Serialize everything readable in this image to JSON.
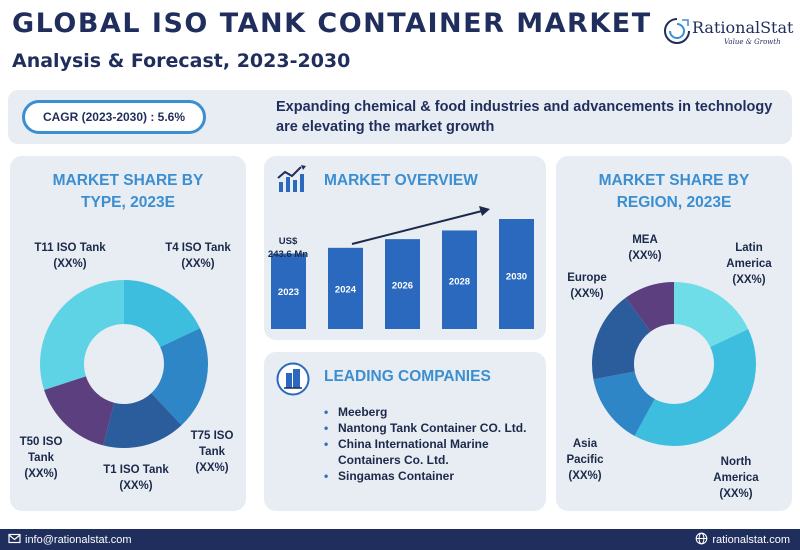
{
  "header": {
    "title": "GLOBAL ISO TANK CONTAINER MARKET",
    "subtitle": "Analysis & Forecast, 2023-2030"
  },
  "logo": {
    "name": "RationalStat",
    "tagline": "Value & Growth"
  },
  "banner": {
    "cagr": "CAGR (2023-2030) : 5.6%",
    "text": "Expanding chemical & food industries and advancements in technology are elevating the market growth"
  },
  "type_share": {
    "heading": "MARKET SHARE BY TYPE, 2023E",
    "labels": {
      "t11": [
        "T11 ISO Tank",
        "(XX%)"
      ],
      "t4": [
        "T4 ISO Tank",
        "(XX%)"
      ],
      "t75": [
        "T75 ISO",
        "Tank",
        "(XX%)"
      ],
      "t1": [
        "T1 ISO Tank",
        "(XX%)"
      ],
      "t50": [
        "T50 ISO",
        "Tank",
        "(XX%)"
      ]
    }
  },
  "overview": {
    "heading": "MARKET OVERVIEW",
    "value_label": [
      "US$",
      "243.6 Mn"
    ]
  },
  "companies": {
    "heading": "LEADING COMPANIES",
    "items": [
      "Meeberg",
      "Nantong Tank Container CO. Ltd.",
      "China International Marine Containers Co. Ltd.",
      "Singamas Container"
    ]
  },
  "region_share": {
    "heading": "MARKET SHARE BY REGION, 2023E",
    "labels": {
      "mea": [
        "MEA",
        "(XX%)"
      ],
      "latam": [
        "Latin",
        "America",
        "(XX%)"
      ],
      "europe": [
        "Europe",
        "(XX%)"
      ],
      "apac": [
        "Asia",
        "Pacific",
        "(XX%)"
      ],
      "na": [
        "North",
        "America",
        "(XX%)"
      ]
    }
  },
  "footer": {
    "email": "info@rationalstat.com",
    "website": "rationalstat.com"
  },
  "chart_data": [
    {
      "type": "pie",
      "title": "MARKET SHARE BY TYPE, 2023E",
      "categories": [
        "T11 ISO Tank",
        "T4 ISO Tank",
        "T75 ISO Tank",
        "T1 ISO Tank",
        "T50 ISO Tank"
      ],
      "values": [
        30,
        18,
        20,
        16,
        16
      ],
      "colors": [
        "#5fd3e6",
        "#3ebede",
        "#2e86c6",
        "#2b5c9c",
        "#5b3f7f"
      ]
    },
    {
      "type": "bar",
      "title": "MARKET OVERVIEW",
      "categories": [
        "2023",
        "2024",
        "2026",
        "2028",
        "2030"
      ],
      "values": [
        243.6,
        262,
        290,
        318,
        355
      ],
      "ylabel": "US$ Mn",
      "bar_color": "#2a69be"
    },
    {
      "type": "pie",
      "title": "MARKET SHARE BY REGION, 2023E",
      "categories": [
        "MEA",
        "Latin America",
        "North America",
        "Asia Pacific",
        "Europe"
      ],
      "values": [
        10,
        18,
        40,
        14,
        18
      ],
      "colors": [
        "#5b3f7f",
        "#6fdde8",
        "#3ebede",
        "#2e86c6",
        "#2b5c9c"
      ]
    }
  ]
}
